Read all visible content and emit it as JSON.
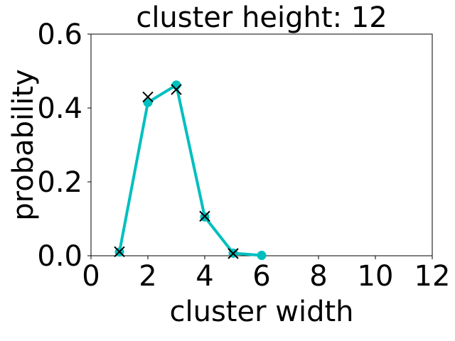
{
  "chart_data": {
    "type": "line",
    "title": "cluster height: 12",
    "xlabel": "cluster width",
    "ylabel": "probability",
    "xlim": [
      0,
      12
    ],
    "ylim": [
      0,
      0.6
    ],
    "xticks": [
      "0",
      "2",
      "4",
      "6",
      "8",
      "10",
      "12"
    ],
    "yticks": [
      "0.0",
      "0.2",
      "0.4",
      "0.6"
    ],
    "grid": false,
    "series": [
      {
        "marker": "circle",
        "color": "#00bfbf",
        "x": [
          1,
          2,
          3,
          4,
          5,
          6
        ],
        "y": [
          0.01,
          0.415,
          0.462,
          0.105,
          0.007,
          0.001
        ]
      },
      {
        "marker": "x",
        "color": "#000000",
        "x": [
          1,
          2,
          3,
          4,
          5
        ],
        "y": [
          0.011,
          0.43,
          0.45,
          0.107,
          0.006
        ]
      }
    ]
  }
}
